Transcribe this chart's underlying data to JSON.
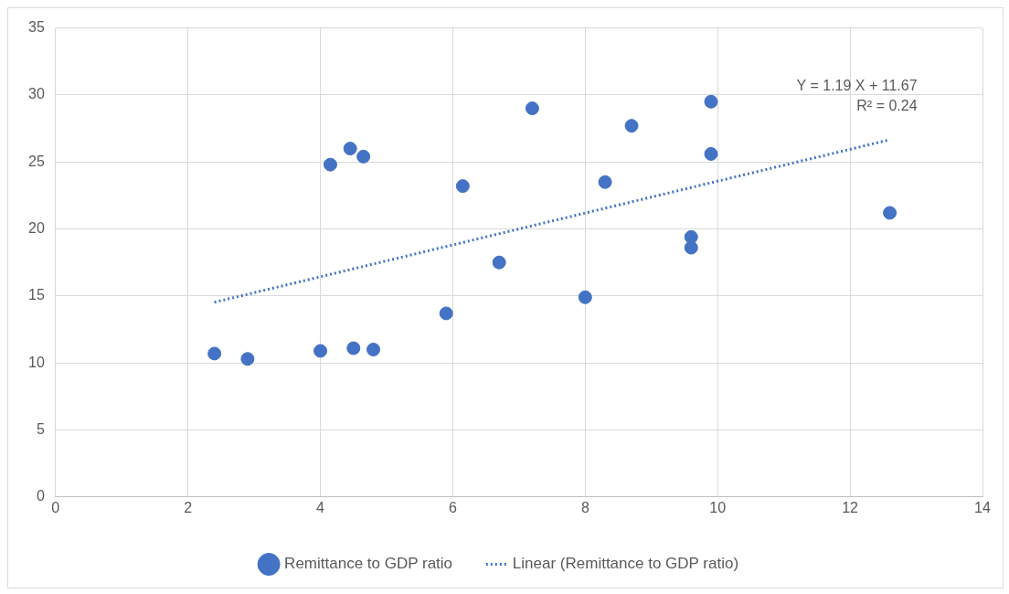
{
  "chart_data": {
    "type": "scatter",
    "xlim": [
      0,
      14
    ],
    "xticks": [
      0,
      2,
      4,
      6,
      8,
      10,
      12,
      14
    ],
    "ylim": [
      0,
      35
    ],
    "yticks": [
      0,
      5,
      10,
      15,
      20,
      25,
      30,
      35
    ],
    "grid": true,
    "legend": "bottom",
    "marker": "circle",
    "annotations": [
      "Y = 1.19 X + 11.67",
      "R² = 0.24"
    ],
    "series": [
      {
        "name": "Remittance to GDP ratio",
        "color": "#4472c4",
        "x": [
          2.4,
          2.9,
          4.0,
          4.15,
          4.45,
          4.5,
          4.65,
          4.8,
          5.9,
          6.15,
          6.7,
          7.2,
          8.0,
          8.3,
          8.7,
          9.6,
          9.6,
          9.9,
          9.9,
          12.6
        ],
        "values": [
          10.7,
          10.3,
          10.9,
          24.8,
          26.0,
          11.1,
          25.4,
          11.0,
          13.7,
          23.2,
          17.5,
          29.0,
          14.9,
          23.5,
          27.7,
          19.4,
          18.6,
          29.5,
          25.6,
          21.2
        ]
      },
      {
        "name": "Linear (Remittance to GDP ratio)",
        "type": "line",
        "color": "#4472c4",
        "line_style": "dotted",
        "marker": "none",
        "x": [
          2.4,
          12.6
        ],
        "values": [
          14.53,
          26.66
        ]
      }
    ]
  }
}
